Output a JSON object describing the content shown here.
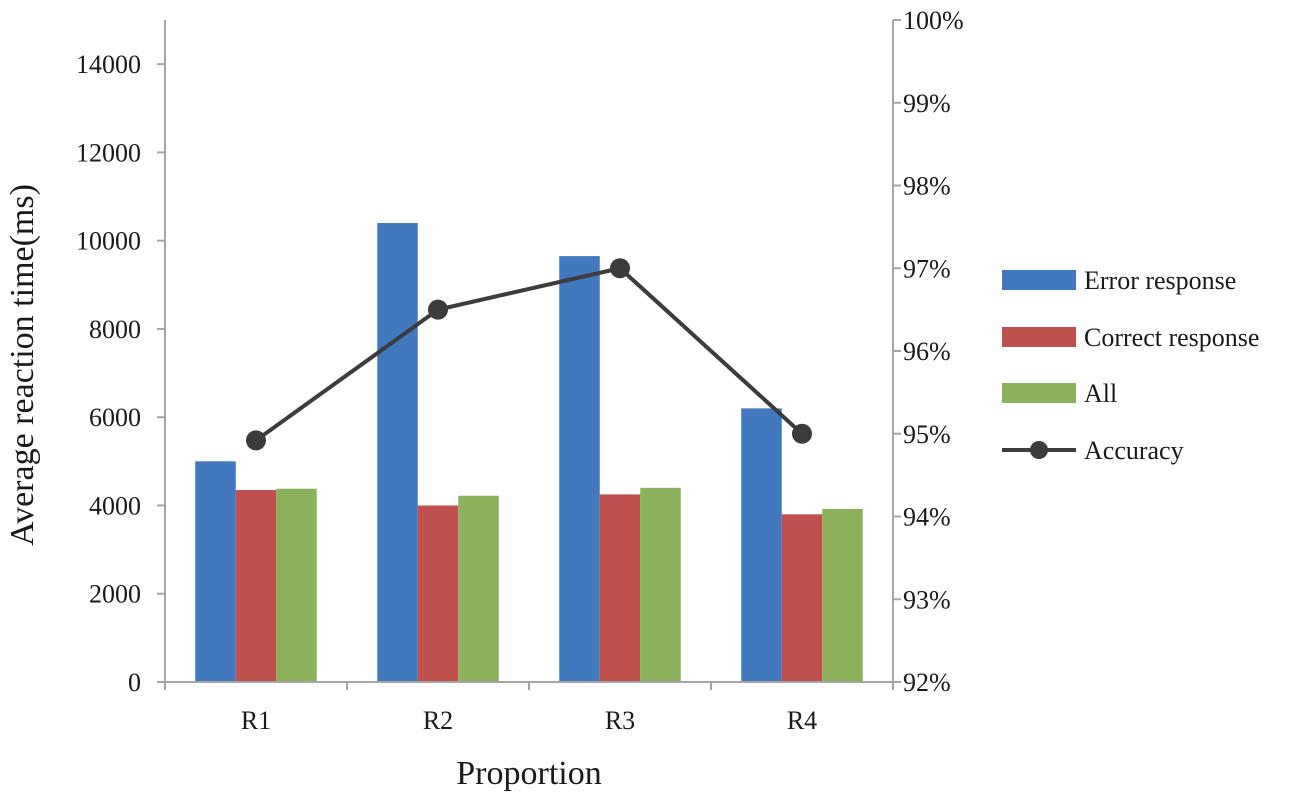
{
  "chart_data": {
    "type": "bar",
    "categories": [
      "R1",
      "R2",
      "R3",
      "R4"
    ],
    "series": [
      {
        "name": "Error response",
        "kind": "bar",
        "axis": "left",
        "color": "#4178BE",
        "values": [
          5000,
          10400,
          9650,
          6200
        ]
      },
      {
        "name": "Correct response",
        "kind": "bar",
        "axis": "left",
        "color": "#C0504D",
        "values": [
          4350,
          4000,
          4250,
          3800
        ]
      },
      {
        "name": "All",
        "kind": "bar",
        "axis": "left",
        "color": "#8BB15C",
        "values": [
          4380,
          4220,
          4400,
          3920
        ]
      },
      {
        "name": "Accuracy",
        "kind": "line",
        "axis": "right",
        "color": "#3C3C3C",
        "values": [
          94.92,
          96.5,
          97.0,
          95.0
        ]
      }
    ],
    "xlabel": "Proportion",
    "ylabel": "Average reaction time(ms)",
    "ylim": [
      0,
      15000
    ],
    "y_ticks": [
      0,
      2000,
      4000,
      6000,
      8000,
      10000,
      12000,
      14000
    ],
    "y2lim": [
      92,
      100
    ],
    "y2_ticks": [
      92,
      93,
      94,
      95,
      96,
      97,
      98,
      99,
      100
    ],
    "y2_tick_suffix": "%",
    "grid": false,
    "legend_position": "right"
  }
}
